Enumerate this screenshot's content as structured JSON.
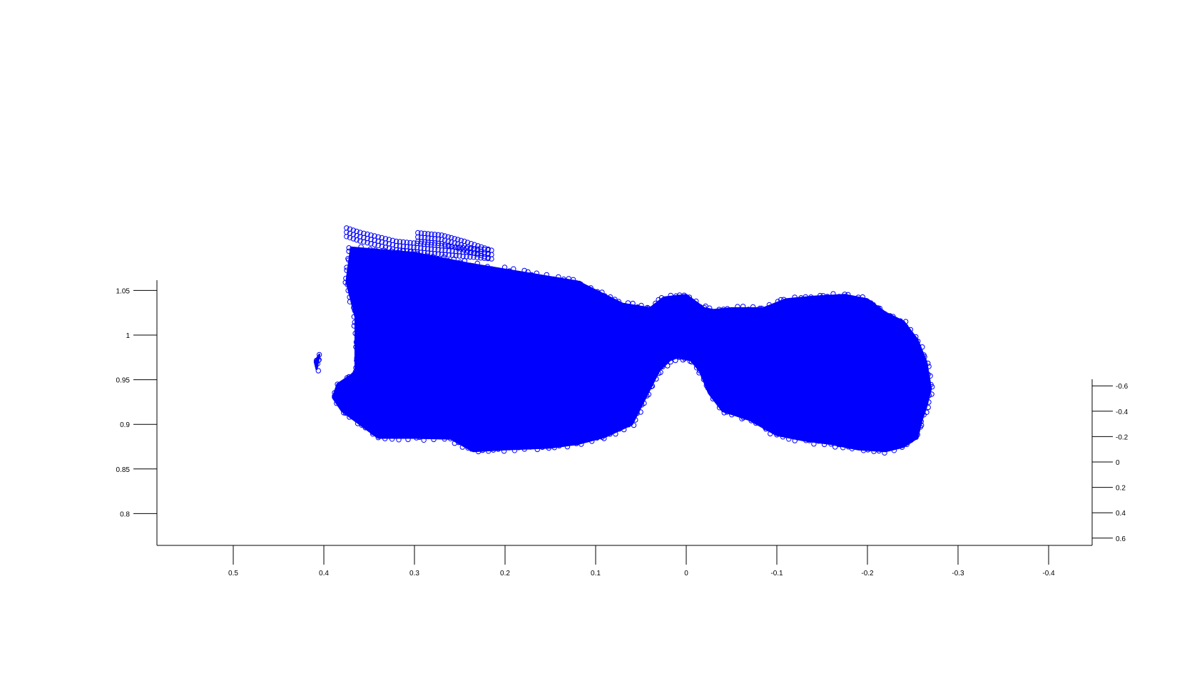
{
  "chart_data": {
    "type": "scatter",
    "marker": "open-circle",
    "marker_color": "#0000ff",
    "view": "3d-projection",
    "axes": {
      "x": {
        "ticks": [
          0.5,
          0.4,
          0.3,
          0.2,
          0.1,
          0,
          -0.1,
          -0.2,
          -0.3,
          -0.4
        ],
        "tick_labels": [
          "0.5",
          "0.4",
          "0.3",
          "0.2",
          "0.1",
          "0",
          "-0.1",
          "-0.2",
          "-0.3",
          "-0.4"
        ],
        "direction": "reversed"
      },
      "z": {
        "ticks": [
          1.05,
          1,
          0.95,
          0.9,
          0.85,
          0.8
        ],
        "tick_labels": [
          "1.05",
          "1",
          "0.95",
          "0.9",
          "0.85",
          "0.8"
        ]
      },
      "y": {
        "ticks": [
          -0.6,
          -0.4,
          -0.2,
          0,
          0.2,
          0.4,
          0.6
        ],
        "tick_labels": [
          "-0.6",
          "-0.4",
          "-0.2",
          "0",
          "0.2",
          "0.4",
          "0.6"
        ]
      }
    },
    "point_cloud_outline": {
      "description_units": "x (horizontal axis), z (vertical axis)",
      "left_region": [
        [
          0.385,
          0.945
        ],
        [
          0.39,
          0.93
        ],
        [
          0.38,
          0.915
        ],
        [
          0.36,
          0.9
        ],
        [
          0.34,
          0.885
        ],
        [
          0.3,
          0.885
        ],
        [
          0.26,
          0.884
        ],
        [
          0.235,
          0.87
        ],
        [
          0.2,
          0.872
        ],
        [
          0.15,
          0.874
        ],
        [
          0.12,
          0.878
        ],
        [
          0.09,
          0.886
        ],
        [
          0.06,
          0.9
        ],
        [
          0.045,
          0.93
        ],
        [
          0.03,
          0.96
        ],
        [
          0.018,
          0.972
        ],
        [
          0.01,
          0.975
        ],
        [
          -0.005,
          0.972
        ],
        [
          -0.015,
          0.96
        ],
        [
          -0.02,
          1.03
        ],
        [
          0.0,
          1.045
        ],
        [
          0.025,
          1.042
        ],
        [
          0.04,
          1.03
        ],
        [
          0.07,
          1.035
        ],
        [
          0.12,
          1.06
        ],
        [
          0.18,
          1.07
        ],
        [
          0.24,
          1.08
        ],
        [
          0.3,
          1.092
        ],
        [
          0.335,
          1.095
        ],
        [
          0.37,
          1.098
        ],
        [
          0.375,
          1.06
        ],
        [
          0.365,
          1.02
        ],
        [
          0.365,
          0.96
        ],
        [
          0.37,
          0.955
        ]
      ],
      "right_region": [
        [
          -0.015,
          0.96
        ],
        [
          -0.025,
          0.935
        ],
        [
          -0.04,
          0.915
        ],
        [
          -0.07,
          0.905
        ],
        [
          -0.1,
          0.888
        ],
        [
          -0.13,
          0.882
        ],
        [
          -0.16,
          0.878
        ],
        [
          -0.19,
          0.872
        ],
        [
          -0.22,
          0.87
        ],
        [
          -0.24,
          0.875
        ],
        [
          -0.255,
          0.885
        ],
        [
          -0.26,
          0.905
        ],
        [
          -0.265,
          0.92
        ],
        [
          -0.27,
          0.94
        ],
        [
          -0.265,
          0.97
        ],
        [
          -0.255,
          0.995
        ],
        [
          -0.24,
          1.015
        ],
        [
          -0.22,
          1.025
        ],
        [
          -0.2,
          1.04
        ],
        [
          -0.175,
          1.045
        ],
        [
          -0.14,
          1.043
        ],
        [
          -0.11,
          1.04
        ],
        [
          -0.085,
          1.03
        ],
        [
          -0.05,
          1.03
        ],
        [
          -0.03,
          1.028
        ],
        [
          -0.02,
          1.03
        ]
      ],
      "top_streak": [
        [
          0.375,
          1.12
        ],
        [
          0.36,
          1.115
        ],
        [
          0.32,
          1.105
        ],
        [
          0.27,
          1.1
        ],
        [
          0.215,
          1.095
        ],
        [
          0.245,
          1.105
        ],
        [
          0.27,
          1.112
        ],
        [
          0.3,
          1.115
        ]
      ],
      "left_blob": [
        [
          0.405,
          0.978
        ],
        [
          0.41,
          0.97
        ],
        [
          0.408,
          0.962
        ]
      ]
    }
  }
}
